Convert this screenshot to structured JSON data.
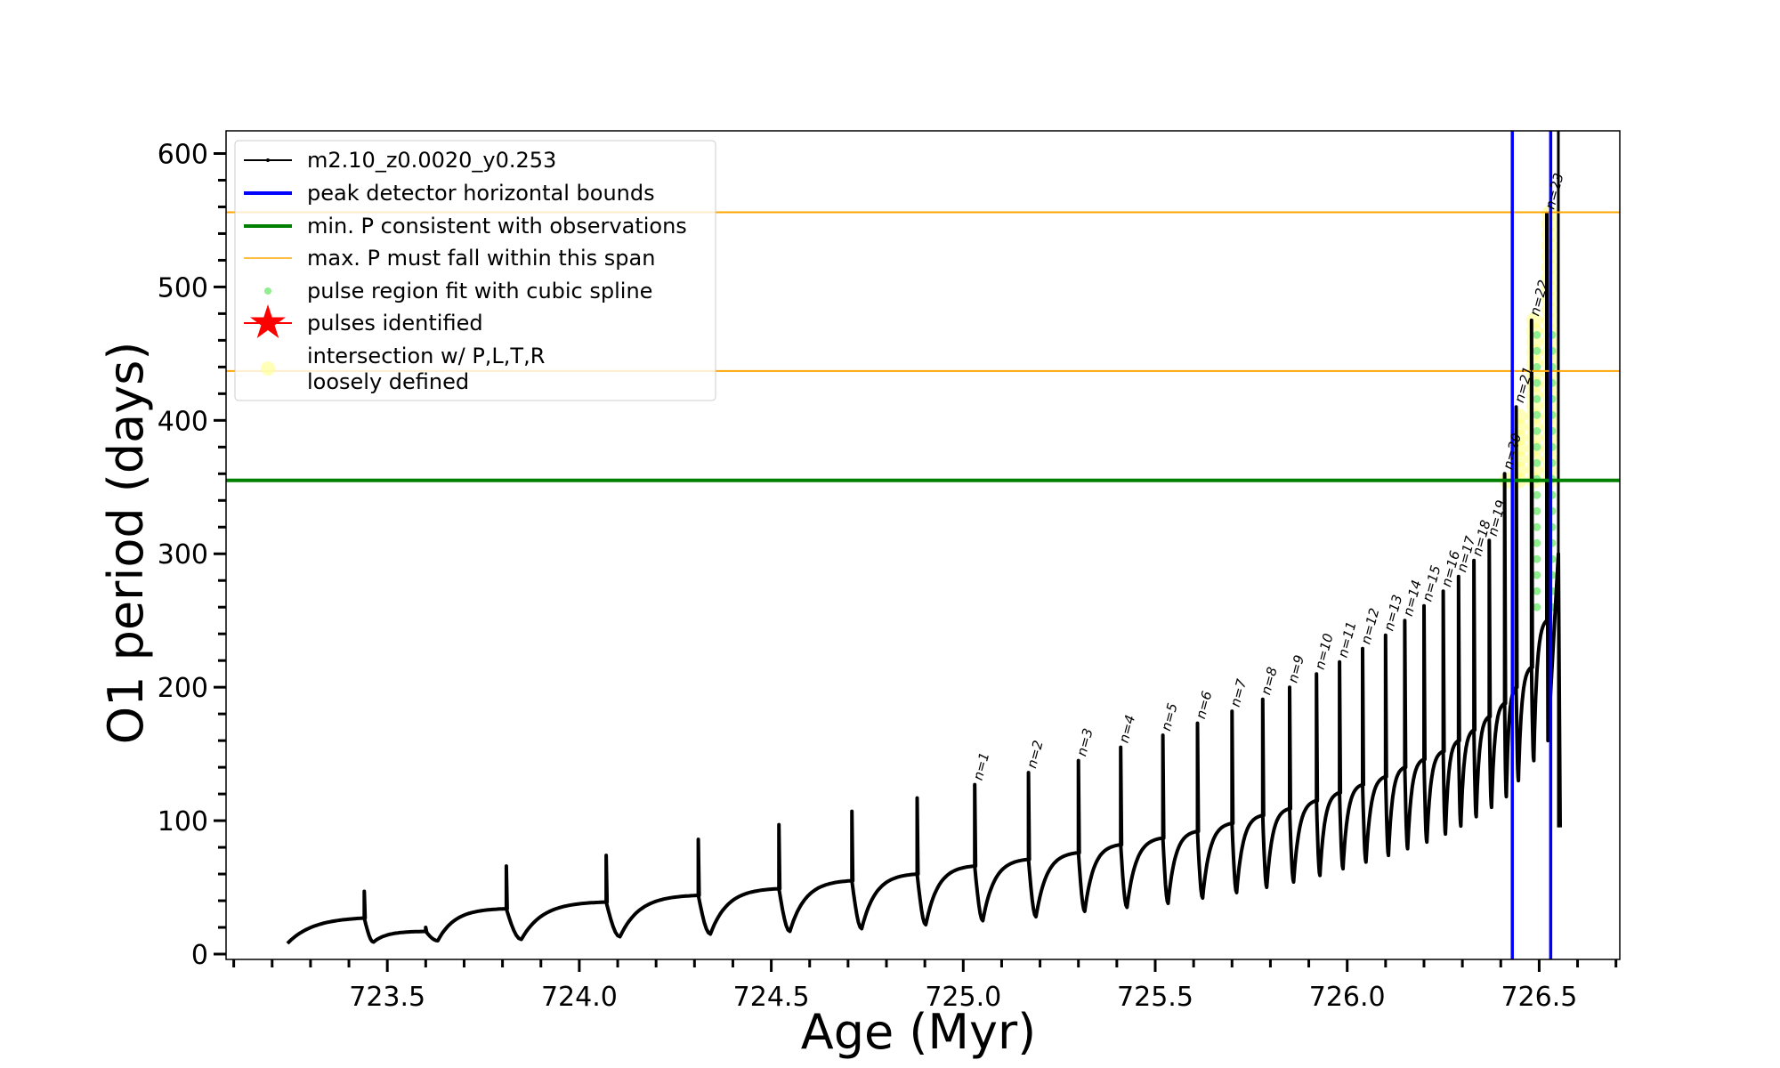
{
  "chart_data": {
    "type": "line",
    "title": "",
    "xlabel": "Age (Myr)",
    "ylabel": "O1 period (days)",
    "xlim": [
      723.08,
      726.71
    ],
    "ylim": [
      -4,
      617
    ],
    "xticks": [
      "723.5",
      "724.0",
      "724.5",
      "725.0",
      "725.5",
      "726.0",
      "726.5"
    ],
    "xtick_values": [
      723.5,
      724.0,
      724.5,
      725.0,
      725.5,
      726.0,
      726.5
    ],
    "yticks": [
      "0",
      "100",
      "200",
      "300",
      "400",
      "500",
      "600"
    ],
    "ytick_values": [
      0,
      100,
      200,
      300,
      400,
      500,
      600
    ],
    "grid": false,
    "legend_placement": "top-left",
    "start": {
      "age": 723.24,
      "period": 8
    },
    "pulses": [
      {
        "age": 723.44,
        "pre": 27,
        "peak": 47,
        "dip": 9,
        "label": ""
      },
      {
        "age": 723.6,
        "pre": 17,
        "peak": 20,
        "dip": 10,
        "label": ""
      },
      {
        "age": 723.81,
        "pre": 34,
        "peak": 66,
        "dip": 11,
        "label": ""
      },
      {
        "age": 724.07,
        "pre": 39,
        "peak": 74,
        "dip": 13,
        "label": ""
      },
      {
        "age": 724.31,
        "pre": 44,
        "peak": 86,
        "dip": 15,
        "label": ""
      },
      {
        "age": 724.52,
        "pre": 49,
        "peak": 97,
        "dip": 17,
        "label": ""
      },
      {
        "age": 724.71,
        "pre": 55,
        "peak": 107,
        "dip": 19,
        "label": ""
      },
      {
        "age": 724.88,
        "pre": 60,
        "peak": 117,
        "dip": 22,
        "label": ""
      },
      {
        "age": 725.03,
        "pre": 66,
        "peak": 127,
        "dip": 25,
        "label": "n=1"
      },
      {
        "age": 725.17,
        "pre": 71,
        "peak": 136,
        "dip": 28,
        "label": "n=2"
      },
      {
        "age": 725.3,
        "pre": 76,
        "peak": 145,
        "dip": 32,
        "label": "n=3"
      },
      {
        "age": 725.41,
        "pre": 82,
        "peak": 155,
        "dip": 35,
        "label": "n=4"
      },
      {
        "age": 725.52,
        "pre": 87,
        "peak": 164,
        "dip": 38,
        "label": "n=5"
      },
      {
        "age": 725.61,
        "pre": 92,
        "peak": 173,
        "dip": 42,
        "label": "n=6"
      },
      {
        "age": 725.7,
        "pre": 98,
        "peak": 182,
        "dip": 46,
        "label": "n=7"
      },
      {
        "age": 725.78,
        "pre": 104,
        "peak": 191,
        "dip": 50,
        "label": "n=8"
      },
      {
        "age": 725.85,
        "pre": 109,
        "peak": 200,
        "dip": 54,
        "label": "n=9"
      },
      {
        "age": 725.92,
        "pre": 115,
        "peak": 210,
        "dip": 59,
        "label": "n=10"
      },
      {
        "age": 725.98,
        "pre": 121,
        "peak": 219,
        "dip": 64,
        "label": "n=11"
      },
      {
        "age": 726.04,
        "pre": 127,
        "peak": 229,
        "dip": 69,
        "label": "n=12"
      },
      {
        "age": 726.1,
        "pre": 133,
        "peak": 239,
        "dip": 74,
        "label": "n=13"
      },
      {
        "age": 726.15,
        "pre": 140,
        "peak": 250,
        "dip": 79,
        "label": "n=14"
      },
      {
        "age": 726.2,
        "pre": 146,
        "peak": 261,
        "dip": 84,
        "label": "n=15"
      },
      {
        "age": 726.25,
        "pre": 152,
        "peak": 272,
        "dip": 90,
        "label": "n=16"
      },
      {
        "age": 726.29,
        "pre": 160,
        "peak": 283,
        "dip": 96,
        "label": "n=17"
      },
      {
        "age": 726.33,
        "pre": 168,
        "peak": 295,
        "dip": 103,
        "label": "n=18"
      },
      {
        "age": 726.37,
        "pre": 178,
        "peak": 310,
        "dip": 110,
        "label": "n=19"
      },
      {
        "age": 726.41,
        "pre": 188,
        "peak": 360,
        "dip": 118,
        "label": "n=20"
      },
      {
        "age": 726.44,
        "pre": 200,
        "peak": 410,
        "dip": 130,
        "label": "n=21"
      },
      {
        "age": 726.48,
        "pre": 215,
        "peak": 475,
        "dip": 145,
        "label": "n=22"
      },
      {
        "age": 726.52,
        "pre": 250,
        "peak": 555,
        "dip": 160,
        "label": "n=23"
      }
    ],
    "end": {
      "age": 726.55,
      "peak": 300,
      "final": 95
    },
    "hlines": [
      {
        "y": 355,
        "color": "#008000",
        "legend": "min. P consistent with observations"
      },
      {
        "y": 556,
        "color": "#ffa500",
        "legend": "max. P must fall within this span"
      },
      {
        "y": 437,
        "color": "#ffa500",
        "legend": ""
      }
    ],
    "vlines": [
      {
        "x": 726.43,
        "color": "#0000ff"
      },
      {
        "x": 726.53,
        "color": "#0000ff"
      }
    ],
    "legend": [
      {
        "label": "m2.10_z0.0020_y0.253",
        "marker": "line-dot",
        "color": "#000000"
      },
      {
        "label": "peak detector horizontal bounds",
        "marker": "thick-line",
        "color": "#0000ff"
      },
      {
        "label": "min. P consistent with observations",
        "marker": "thick-line",
        "color": "#008000"
      },
      {
        "label": "max. P must fall within this span",
        "marker": "thin-line",
        "color": "#ffa500"
      },
      {
        "label": "pulse region fit with cubic spline",
        "marker": "dot",
        "color": "#90ee90"
      },
      {
        "label": "pulses identified",
        "marker": "star",
        "color": "#ff0000"
      },
      {
        "label": "intersection w/ P,L,T,R",
        "label2": "loosely defined",
        "marker": "circle",
        "color": "#ffff99"
      }
    ]
  }
}
